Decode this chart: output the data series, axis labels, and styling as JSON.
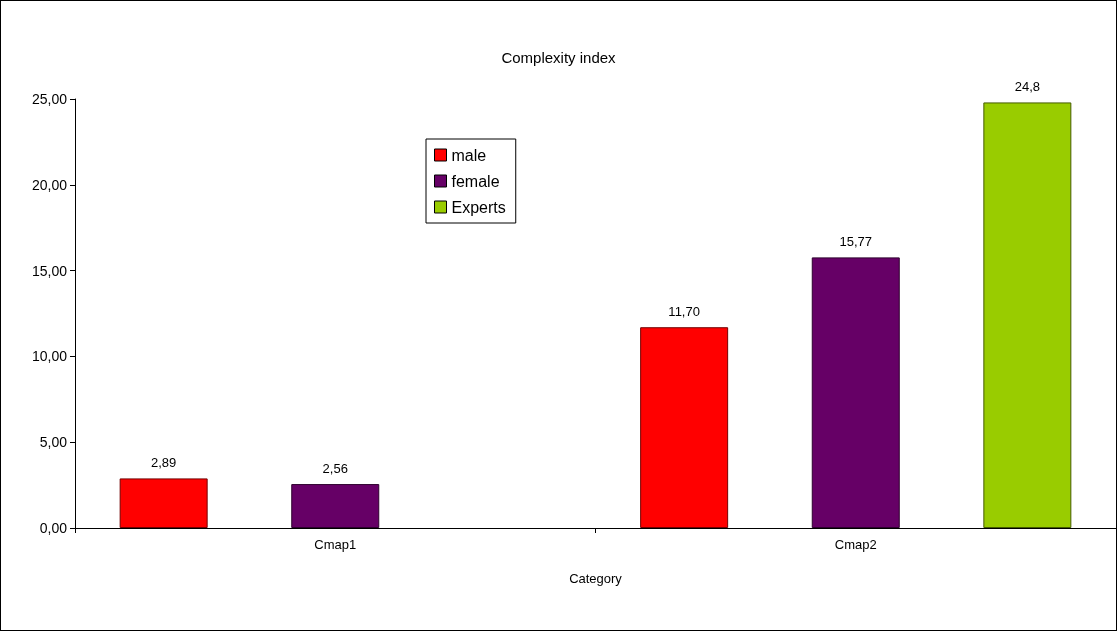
{
  "chart_data": {
    "type": "bar",
    "title": "Complexity index",
    "xlabel": "Category",
    "categories": [
      "Cmap1",
      "Cmap2"
    ],
    "series": [
      {
        "name": "male",
        "color": "#ff0000",
        "values": [
          2.89,
          11.7
        ],
        "value_labels": [
          "2,89",
          "11,70"
        ]
      },
      {
        "name": "female",
        "color": "#660066",
        "values": [
          2.56,
          15.77
        ],
        "value_labels": [
          "2,56",
          "15,77"
        ]
      },
      {
        "name": "Experts",
        "color": "#99cc00",
        "values": [
          null,
          24.8
        ],
        "value_labels": [
          null,
          "24,8"
        ]
      }
    ],
    "ylim": [
      0,
      25
    ],
    "yticks": [
      {
        "value": 0,
        "label": "0,00"
      },
      {
        "value": 5,
        "label": "5,00"
      },
      {
        "value": 10,
        "label": "10,00"
      },
      {
        "value": 15,
        "label": "15,00"
      },
      {
        "value": 20,
        "label": "20,00"
      },
      {
        "value": 25,
        "label": "25,00"
      }
    ],
    "grid": false,
    "legend": "top left"
  }
}
